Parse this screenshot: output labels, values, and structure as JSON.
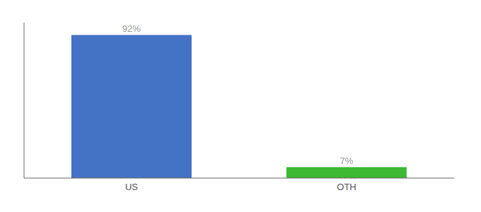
{
  "chart_data": {
    "type": "bar",
    "categories": [
      "US",
      "OTH"
    ],
    "values": [
      92,
      7
    ],
    "value_labels": [
      "92%",
      "7%"
    ],
    "colors": [
      "#4472c4",
      "#3cb832"
    ],
    "ylim": [
      0,
      100
    ],
    "tick_labels": "x"
  }
}
